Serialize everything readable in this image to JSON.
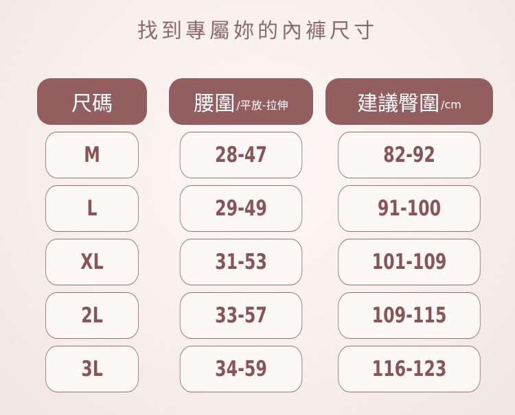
{
  "title": "找到專屬妳的內褲尺寸",
  "headers": {
    "size": {
      "main": "尺碼",
      "sub": ""
    },
    "waist": {
      "main": "腰圍",
      "sub": "/平放-拉伸"
    },
    "hip": {
      "main": "建議臀圍",
      "sub": "/cm"
    }
  },
  "rows": [
    {
      "size": "M",
      "waist": "28-47",
      "hip": "82-92"
    },
    {
      "size": "L",
      "waist": "29-49",
      "hip": "91-100"
    },
    {
      "size": "XL",
      "waist": "31-53",
      "hip": "101-109"
    },
    {
      "size": "2L",
      "waist": "33-57",
      "hip": "109-115"
    },
    {
      "size": "3L",
      "waist": "34-59",
      "hip": "116-123"
    }
  ],
  "colors": {
    "header_bg": "#935e60",
    "value_text": "#8a5457",
    "background": "#f6eeea"
  }
}
